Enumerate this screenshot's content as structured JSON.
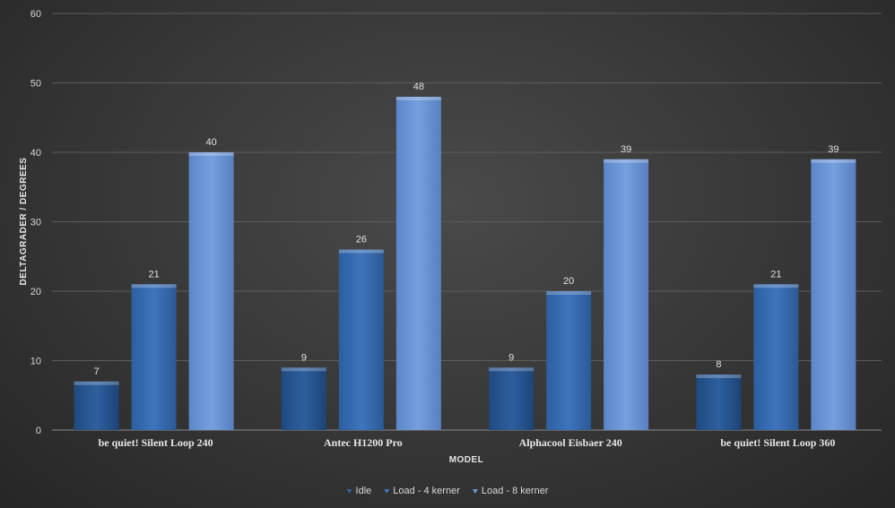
{
  "chart_data": {
    "type": "bar",
    "title": "",
    "xlabel": "MODEL",
    "ylabel": "DELTAGRADER / DEGREES",
    "ylim": [
      0,
      60
    ],
    "yticks": [
      0,
      10,
      20,
      30,
      40,
      50,
      60
    ],
    "grid": true,
    "legend_position": "bottom",
    "categories": [
      "be quiet! Silent Loop 240",
      "Antec H1200 Pro",
      "Alphacool Eisbaer 240",
      "be quiet! Silent Loop 360"
    ],
    "series": [
      {
        "name": "Idle",
        "values": [
          7,
          9,
          9,
          8
        ],
        "color": "#2e5f9e"
      },
      {
        "name": "Load - 4 kerner",
        "values": [
          21,
          26,
          20,
          21
        ],
        "color": "#3f74bd"
      },
      {
        "name": "Load - 8 kerner",
        "values": [
          40,
          48,
          39,
          39
        ],
        "color": "#6e98da"
      }
    ]
  }
}
